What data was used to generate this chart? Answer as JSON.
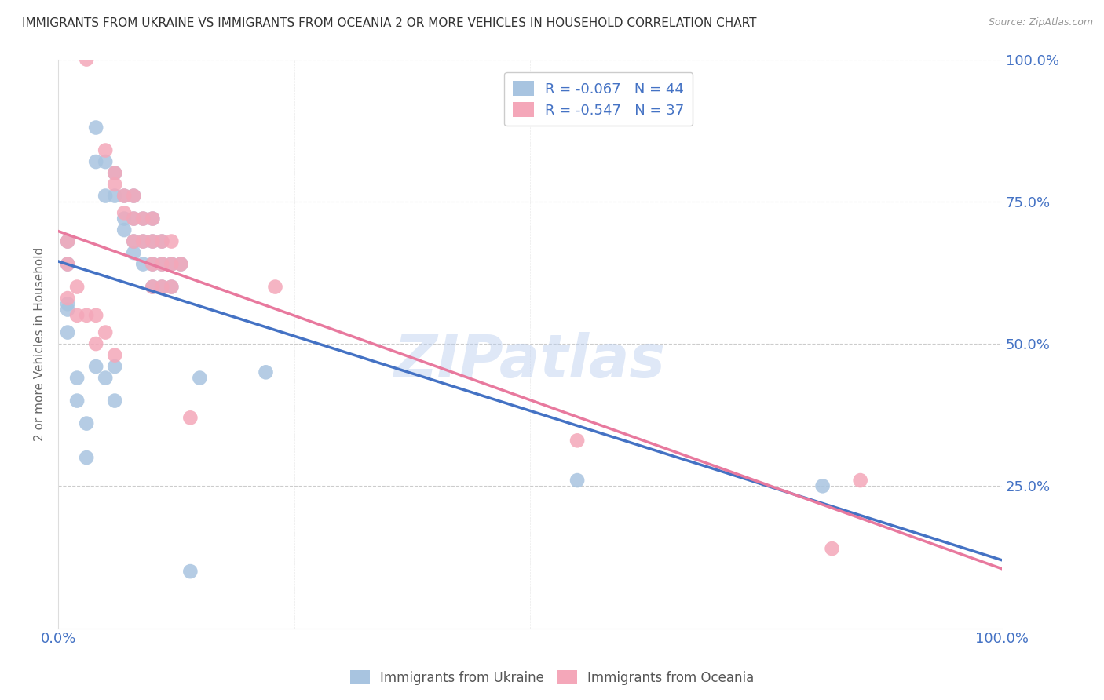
{
  "title": "IMMIGRANTS FROM UKRAINE VS IMMIGRANTS FROM OCEANIA 2 OR MORE VEHICLES IN HOUSEHOLD CORRELATION CHART",
  "source": "Source: ZipAtlas.com",
  "ylabel": "2 or more Vehicles in Household",
  "xlim": [
    0,
    1.0
  ],
  "ylim": [
    0,
    1.0
  ],
  "ukraine_color": "#a8c4e0",
  "oceania_color": "#f4a7b9",
  "ukraine_line_color": "#4472c4",
  "oceania_line_color": "#e8799e",
  "ukraine_R": -0.067,
  "ukraine_N": 44,
  "oceania_R": -0.547,
  "oceania_N": 37,
  "legend_label_ukraine": "Immigrants from Ukraine",
  "legend_label_oceania": "Immigrants from Oceania",
  "watermark": "ZIPatlas",
  "ukraine_x": [
    0.01,
    0.04,
    0.04,
    0.05,
    0.05,
    0.06,
    0.06,
    0.07,
    0.07,
    0.07,
    0.08,
    0.08,
    0.08,
    0.08,
    0.09,
    0.09,
    0.09,
    0.1,
    0.1,
    0.1,
    0.1,
    0.11,
    0.11,
    0.11,
    0.12,
    0.12,
    0.13,
    0.01,
    0.01,
    0.01,
    0.01,
    0.02,
    0.02,
    0.03,
    0.03,
    0.04,
    0.05,
    0.06,
    0.06,
    0.15,
    0.22,
    0.55,
    0.81,
    0.14
  ],
  "ukraine_y": [
    0.57,
    0.88,
    0.82,
    0.82,
    0.76,
    0.8,
    0.76,
    0.76,
    0.72,
    0.7,
    0.76,
    0.72,
    0.68,
    0.66,
    0.72,
    0.68,
    0.64,
    0.72,
    0.68,
    0.64,
    0.6,
    0.68,
    0.64,
    0.6,
    0.64,
    0.6,
    0.64,
    0.68,
    0.64,
    0.56,
    0.52,
    0.44,
    0.4,
    0.36,
    0.3,
    0.46,
    0.44,
    0.46,
    0.4,
    0.44,
    0.45,
    0.26,
    0.25,
    0.1
  ],
  "oceania_x": [
    0.03,
    0.05,
    0.06,
    0.06,
    0.07,
    0.07,
    0.08,
    0.08,
    0.08,
    0.09,
    0.09,
    0.1,
    0.1,
    0.1,
    0.1,
    0.11,
    0.11,
    0.11,
    0.12,
    0.12,
    0.12,
    0.13,
    0.01,
    0.01,
    0.01,
    0.02,
    0.02,
    0.03,
    0.04,
    0.04,
    0.05,
    0.06,
    0.23,
    0.55,
    0.82,
    0.85,
    0.14
  ],
  "oceania_y": [
    1.0,
    0.84,
    0.8,
    0.78,
    0.76,
    0.73,
    0.76,
    0.72,
    0.68,
    0.72,
    0.68,
    0.72,
    0.68,
    0.64,
    0.6,
    0.68,
    0.64,
    0.6,
    0.68,
    0.64,
    0.6,
    0.64,
    0.68,
    0.64,
    0.58,
    0.6,
    0.55,
    0.55,
    0.55,
    0.5,
    0.52,
    0.48,
    0.6,
    0.33,
    0.14,
    0.26,
    0.37
  ],
  "background_color": "#ffffff",
  "grid_color": "#cccccc",
  "title_color": "#333333",
  "title_fontsize": 11,
  "tick_label_color": "#4472c4"
}
